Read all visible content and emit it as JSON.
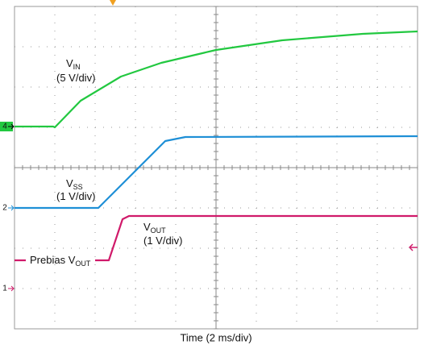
{
  "chart_data": {
    "type": "line",
    "xlabel": "Time (2 ms/div)",
    "xlim": [
      0,
      10
    ],
    "ylim": [
      0,
      8
    ],
    "grid": true,
    "series": [
      {
        "color": "#22c840",
        "x": [
          0,
          0.96,
          1.0,
          1.64,
          2.64,
          3.64,
          5.0,
          6.64,
          8.64,
          10
        ],
        "values": [
          5.02,
          5.02,
          5.0,
          5.66,
          6.26,
          6.6,
          6.92,
          7.16,
          7.32,
          7.38
        ]
      },
      {
        "color": "#1e8fd6",
        "x": [
          0,
          2.08,
          3.74,
          4.24,
          10
        ],
        "values": [
          3.0,
          3.0,
          4.66,
          4.76,
          4.78
        ]
      },
      {
        "color": "#d01a6a",
        "x": [
          0,
          0.28,
          1.0,
          2.0,
          2.34,
          2.68,
          2.84,
          10
        ],
        "values": [
          1.7,
          1.7,
          null,
          1.7,
          1.7,
          2.72,
          2.8,
          2.8
        ]
      }
    ],
    "channels": [
      {
        "label": "4",
        "level": 5.02,
        "color": "#22c840"
      },
      {
        "label": "2",
        "level": 3.0,
        "color": "#1e8fd6"
      },
      {
        "label": "1",
        "level": 1.0,
        "color": "#d01a6a"
      }
    ],
    "annotations": [
      {
        "text": "V",
        "sub": "IN"
      },
      {
        "text": "(5 V/div)"
      },
      {
        "text": "V",
        "sub": "SS"
      },
      {
        "text": "(1 V/div)"
      },
      {
        "text": "V",
        "sub": "OUT"
      },
      {
        "text": "(1 V/div)"
      },
      {
        "text": "Prebias V",
        "sub": "OUT"
      }
    ]
  }
}
